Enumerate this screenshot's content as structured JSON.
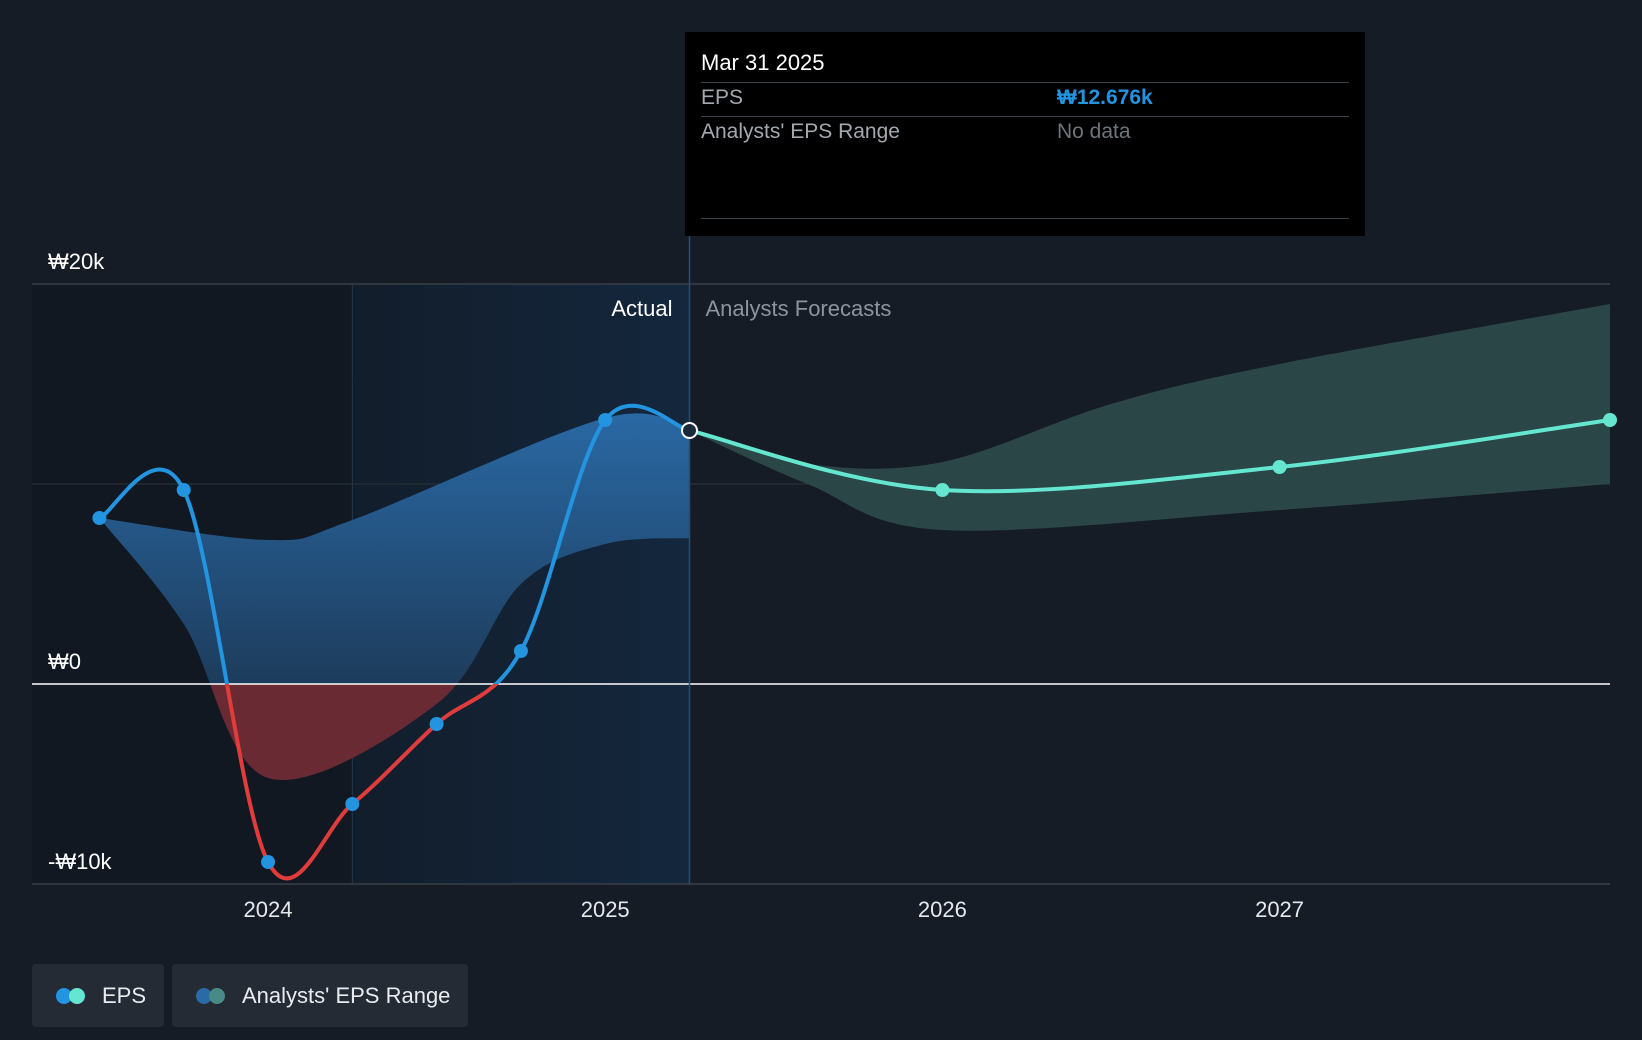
{
  "chart_data": {
    "type": "line",
    "y_ticks": [
      {
        "label": "₩20k",
        "value": 20000
      },
      {
        "label": "₩0",
        "value": 0
      },
      {
        "label": "-₩10k",
        "value": -10000
      }
    ],
    "x_ticks": [
      {
        "label": "2024",
        "t": 2024.0
      },
      {
        "label": "2025",
        "t": 2025.0
      },
      {
        "label": "2026",
        "t": 2026.0
      },
      {
        "label": "2027",
        "t": 2027.0
      }
    ],
    "ylim": [
      -10000,
      20000
    ],
    "xlim": [
      2023.3,
      2027.98
    ],
    "divider_t": 2025.25,
    "highlight_start_t": 2024.25,
    "section_labels": {
      "actual": "Actual",
      "forecast": "Analysts Forecasts"
    },
    "series": [
      {
        "name": "EPS",
        "kind": "actual",
        "points": [
          {
            "t": 2023.5,
            "v": 8300
          },
          {
            "t": 2023.75,
            "v": 9700
          },
          {
            "t": 2024.0,
            "v": -8900
          },
          {
            "t": 2024.25,
            "v": -6000
          },
          {
            "t": 2024.5,
            "v": -2000
          },
          {
            "t": 2024.75,
            "v": 1650
          },
          {
            "t": 2025.0,
            "v": 13200
          },
          {
            "t": 2025.25,
            "v": 12676
          }
        ]
      },
      {
        "name": "EPS",
        "kind": "forecast",
        "points": [
          {
            "t": 2025.25,
            "v": 12676
          },
          {
            "t": 2026.0,
            "v": 9700
          },
          {
            "t": 2027.0,
            "v": 10850
          },
          {
            "t": 2027.98,
            "v": 13200
          }
        ]
      },
      {
        "name": "Analysts' EPS Range",
        "kind": "actual_band",
        "upper": [
          {
            "t": 2023.5,
            "v": 8300
          },
          {
            "t": 2024.0,
            "v": 7200
          },
          {
            "t": 2024.25,
            "v": 8200
          },
          {
            "t": 2025.0,
            "v": 13300
          },
          {
            "t": 2025.25,
            "v": 12676
          }
        ],
        "lower": [
          {
            "t": 2023.5,
            "v": 8300
          },
          {
            "t": 2023.75,
            "v": 3000
          },
          {
            "t": 2024.0,
            "v": -4700
          },
          {
            "t": 2024.5,
            "v": -1000
          },
          {
            "t": 2024.75,
            "v": 5000
          },
          {
            "t": 2025.0,
            "v": 7000
          },
          {
            "t": 2025.25,
            "v": 7300
          }
        ]
      },
      {
        "name": "Analysts' EPS Range",
        "kind": "forecast_band",
        "upper": [
          {
            "t": 2025.25,
            "v": 12676
          },
          {
            "t": 2025.6,
            "v": 11000
          },
          {
            "t": 2026.0,
            "v": 11100
          },
          {
            "t": 2026.5,
            "v": 14000
          },
          {
            "t": 2027.0,
            "v": 16000
          },
          {
            "t": 2027.98,
            "v": 19000
          }
        ],
        "lower": [
          {
            "t": 2025.25,
            "v": 12676
          },
          {
            "t": 2025.6,
            "v": 10000
          },
          {
            "t": 2026.0,
            "v": 7700
          },
          {
            "t": 2027.0,
            "v": 8700
          },
          {
            "t": 2027.98,
            "v": 10000
          }
        ]
      }
    ],
    "colors": {
      "actual_line": "#2394df",
      "negative_line": "#e03c3c",
      "forecast_line": "#64e6d0",
      "actual_band_top": "#2a6aa6",
      "forecast_band": "#2c4b4b",
      "negative_fill": "#6a2a34",
      "highlight": "#14273d"
    }
  },
  "tooltip": {
    "date": "Mar 31 2025",
    "eps_label": "EPS",
    "eps_value": "₩12.676k",
    "range_label": "Analysts' EPS Range",
    "range_value": "No data"
  },
  "legend": [
    {
      "label": "EPS",
      "colors": [
        "#2394df",
        "#64e6d0"
      ]
    },
    {
      "label": "Analysts' EPS Range",
      "colors": [
        "#2a6aa6",
        "#4a8a86"
      ]
    }
  ]
}
